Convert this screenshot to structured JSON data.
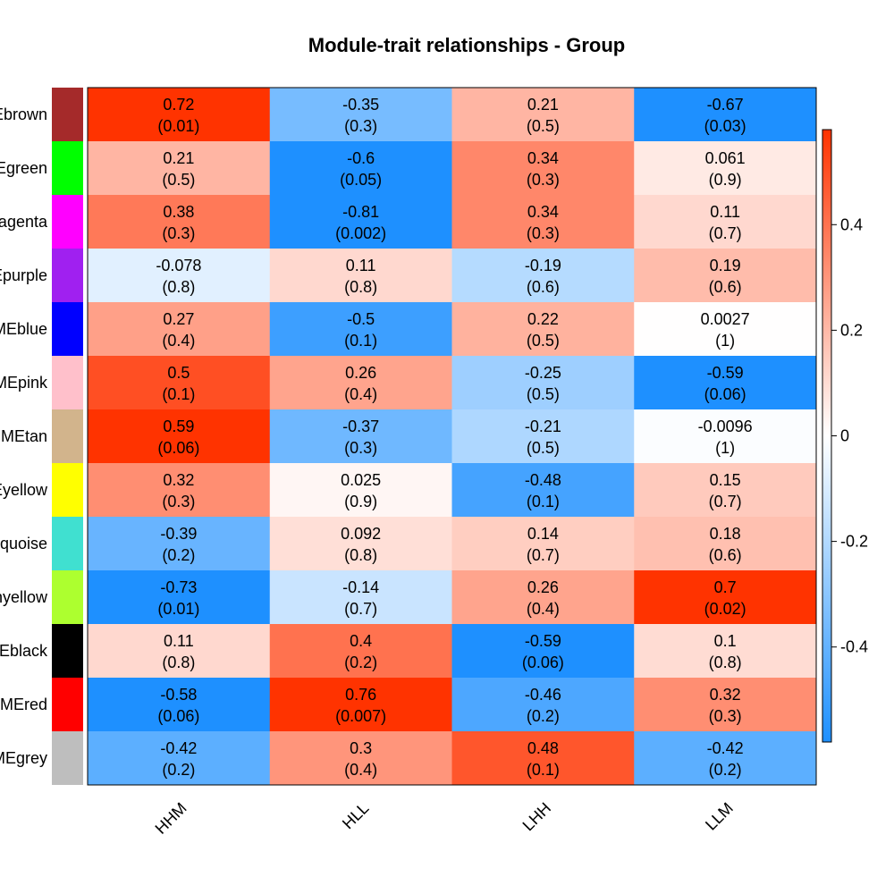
{
  "chart_data": {
    "type": "heatmap",
    "title": "Module-trait relationships - Group",
    "columns": [
      "HHM",
      "HLL",
      "LHH",
      "LLM"
    ],
    "rows": [
      {
        "label": "MEbrown",
        "color": "#a52a2a"
      },
      {
        "label": "MEgreen",
        "color": "#00ff00"
      },
      {
        "label": "MEmagenta",
        "color": "#ff00ff"
      },
      {
        "label": "MEpurple",
        "color": "#a020f0"
      },
      {
        "label": "MEblue",
        "color": "#0000ff"
      },
      {
        "label": "MEpink",
        "color": "#ffc0cb"
      },
      {
        "label": "MEtan",
        "color": "#d2b48c"
      },
      {
        "label": "MEyellow",
        "color": "#ffff00"
      },
      {
        "label": "MEturquoise",
        "color": "#40e0d0"
      },
      {
        "label": "MEgreenyellow",
        "color": "#adff2f"
      },
      {
        "label": "MEblack",
        "color": "#000000"
      },
      {
        "label": "MEred",
        "color": "#ff0000"
      },
      {
        "label": "MEgrey",
        "color": "#bebebe"
      }
    ],
    "values": [
      [
        0.72,
        -0.35,
        0.21,
        -0.67
      ],
      [
        0.21,
        -0.6,
        0.34,
        0.061
      ],
      [
        0.38,
        -0.81,
        0.34,
        0.11
      ],
      [
        -0.078,
        0.11,
        -0.19,
        0.19
      ],
      [
        0.27,
        -0.5,
        0.22,
        0.0027
      ],
      [
        0.5,
        0.26,
        -0.25,
        -0.59
      ],
      [
        0.59,
        -0.37,
        -0.21,
        -0.0096
      ],
      [
        0.32,
        0.025,
        -0.48,
        0.15
      ],
      [
        -0.39,
        0.092,
        0.14,
        0.18
      ],
      [
        -0.73,
        -0.14,
        0.26,
        0.7
      ],
      [
        0.11,
        0.4,
        -0.59,
        0.1
      ],
      [
        -0.58,
        0.76,
        -0.46,
        0.32
      ],
      [
        -0.42,
        0.3,
        0.48,
        -0.42
      ]
    ],
    "value_labels": [
      [
        "0.72",
        "-0.35",
        "0.21",
        "-0.67"
      ],
      [
        "0.21",
        "-0.6",
        "0.34",
        "0.061"
      ],
      [
        "0.38",
        "-0.81",
        "0.34",
        "0.11"
      ],
      [
        "-0.078",
        "0.11",
        "-0.19",
        "0.19"
      ],
      [
        "0.27",
        "-0.5",
        "0.22",
        "0.0027"
      ],
      [
        "0.5",
        "0.26",
        "-0.25",
        "-0.59"
      ],
      [
        "0.59",
        "-0.37",
        "-0.21",
        "-0.0096"
      ],
      [
        "0.32",
        "0.025",
        "-0.48",
        "0.15"
      ],
      [
        "-0.39",
        "0.092",
        "0.14",
        "0.18"
      ],
      [
        "-0.73",
        "-0.14",
        "0.26",
        "0.7"
      ],
      [
        "0.11",
        "0.4",
        "-0.59",
        "0.1"
      ],
      [
        "-0.58",
        "0.76",
        "-0.46",
        "0.32"
      ],
      [
        "-0.42",
        "0.3",
        "0.48",
        "-0.42"
      ]
    ],
    "pvalue_labels": [
      [
        "(0.01)",
        "(0.3)",
        "(0.5)",
        "(0.03)"
      ],
      [
        "(0.5)",
        "(0.05)",
        "(0.3)",
        "(0.9)"
      ],
      [
        "(0.3)",
        "(0.002)",
        "(0.3)",
        "(0.7)"
      ],
      [
        "(0.8)",
        "(0.8)",
        "(0.6)",
        "(0.6)"
      ],
      [
        "(0.4)",
        "(0.1)",
        "(0.5)",
        "(1)"
      ],
      [
        "(0.1)",
        "(0.4)",
        "(0.5)",
        "(0.06)"
      ],
      [
        "(0.06)",
        "(0.3)",
        "(0.5)",
        "(1)"
      ],
      [
        "(0.3)",
        "(0.9)",
        "(0.1)",
        "(0.7)"
      ],
      [
        "(0.2)",
        "(0.8)",
        "(0.7)",
        "(0.6)"
      ],
      [
        "(0.01)",
        "(0.7)",
        "(0.4)",
        "(0.02)"
      ],
      [
        "(0.8)",
        "(0.2)",
        "(0.06)",
        "(0.8)"
      ],
      [
        "(0.06)",
        "(0.007)",
        "(0.2)",
        "(0.3)"
      ],
      [
        "(0.2)",
        "(0.4)",
        "(0.1)",
        "(0.2)"
      ]
    ],
    "color_scale": {
      "low": "#1e90ff",
      "mid": "#ffffff",
      "high": "#ff3300",
      "range": [
        -0.58,
        0.58
      ],
      "ticks": [
        -0.4,
        -0.2,
        0,
        0.2,
        0.4
      ],
      "tick_labels": [
        "-0.4",
        "-0.2",
        "0",
        "0.2",
        "0.4"
      ]
    },
    "legend_position": "right"
  }
}
